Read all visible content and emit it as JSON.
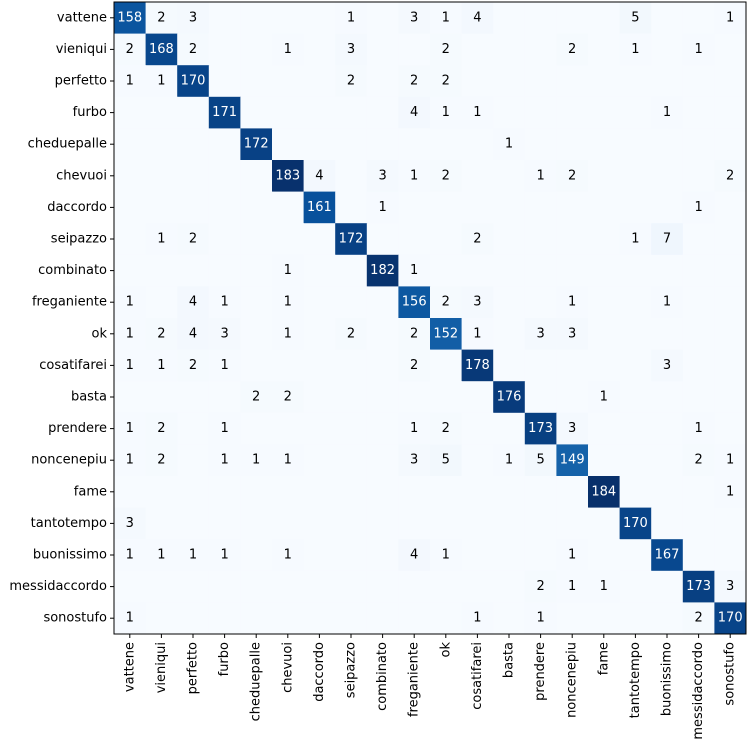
{
  "chart_data": {
    "type": "heatmap",
    "title": "",
    "xlabel": "",
    "ylabel": "",
    "colormap": "Blues",
    "colors": {
      "low": "#f7fbff",
      "high": "#08306b",
      "text_light": "#ffffff",
      "text_dark": "#000000"
    },
    "grid": false,
    "categories": [
      "vattene",
      "vieniqui",
      "perfetto",
      "furbo",
      "cheduepalle",
      "chevuoi",
      "daccordo",
      "seipazzo",
      "combinato",
      "freganiente",
      "ok",
      "cosatifarei",
      "basta",
      "prendere",
      "noncenepiu",
      "fame",
      "tantotempo",
      "buonissimo",
      "messidaccordo",
      "sonostufo"
    ],
    "x_tick_labels": [
      "vattene",
      "vieniqui",
      "perfetto",
      "furbo",
      "cheduepalle",
      "chevuoi",
      "daccordo",
      "seipazzo",
      "combinato",
      "freganiente",
      "ok",
      "cosatifarei",
      "basta",
      "prendere",
      "noncenepiu",
      "fame",
      "tantotempo",
      "buonissimo",
      "messidaccordo",
      "sonostufo"
    ],
    "y_tick_labels": [
      "vattene",
      "vieniqui",
      "perfetto",
      "furbo",
      "cheduepalle",
      "chevuoi",
      "daccordo",
      "seipazzo",
      "combinato",
      "freganiente",
      "ok",
      "cosatifarei",
      "basta",
      "prendere",
      "noncenepiu",
      "fame",
      "tantotempo",
      "buonissimo",
      "messidaccordo",
      "sonostufo"
    ],
    "matrix": [
      [
        158,
        2,
        3,
        0,
        0,
        0,
        0,
        1,
        0,
        3,
        1,
        4,
        0,
        0,
        0,
        0,
        5,
        0,
        0,
        1
      ],
      [
        2,
        168,
        2,
        0,
        0,
        1,
        0,
        3,
        0,
        0,
        2,
        0,
        0,
        0,
        2,
        0,
        1,
        0,
        1,
        0
      ],
      [
        1,
        1,
        170,
        0,
        0,
        0,
        0,
        2,
        0,
        2,
        2,
        0,
        0,
        0,
        0,
        0,
        0,
        0,
        0,
        0
      ],
      [
        0,
        0,
        0,
        171,
        0,
        0,
        0,
        0,
        0,
        4,
        1,
        1,
        0,
        0,
        0,
        0,
        0,
        1,
        0,
        0
      ],
      [
        0,
        0,
        0,
        0,
        172,
        0,
        0,
        0,
        0,
        0,
        0,
        0,
        1,
        0,
        0,
        0,
        0,
        0,
        0,
        0
      ],
      [
        0,
        0,
        0,
        0,
        0,
        183,
        4,
        0,
        3,
        1,
        2,
        0,
        0,
        1,
        2,
        0,
        0,
        0,
        0,
        2
      ],
      [
        0,
        0,
        0,
        0,
        0,
        0,
        161,
        0,
        1,
        0,
        0,
        0,
        0,
        0,
        0,
        0,
        0,
        0,
        1,
        0
      ],
      [
        0,
        1,
        2,
        0,
        0,
        0,
        0,
        172,
        0,
        0,
        0,
        2,
        0,
        0,
        0,
        0,
        1,
        7,
        0,
        0
      ],
      [
        0,
        0,
        0,
        0,
        0,
        1,
        0,
        0,
        182,
        1,
        0,
        0,
        0,
        0,
        0,
        0,
        0,
        0,
        0,
        0
      ],
      [
        1,
        0,
        4,
        1,
        0,
        1,
        0,
        0,
        0,
        156,
        2,
        3,
        0,
        0,
        1,
        0,
        0,
        1,
        0,
        0
      ],
      [
        1,
        2,
        4,
        3,
        0,
        1,
        0,
        2,
        0,
        2,
        152,
        1,
        0,
        3,
        3,
        0,
        0,
        0,
        0,
        0
      ],
      [
        1,
        1,
        2,
        1,
        0,
        0,
        0,
        0,
        0,
        2,
        0,
        178,
        0,
        0,
        0,
        0,
        0,
        3,
        0,
        0
      ],
      [
        0,
        0,
        0,
        0,
        2,
        2,
        0,
        0,
        0,
        0,
        0,
        0,
        176,
        0,
        0,
        1,
        0,
        0,
        0,
        0
      ],
      [
        1,
        2,
        0,
        1,
        0,
        0,
        0,
        0,
        0,
        1,
        2,
        0,
        0,
        173,
        3,
        0,
        0,
        0,
        1,
        0
      ],
      [
        1,
        2,
        0,
        1,
        1,
        1,
        0,
        0,
        0,
        3,
        5,
        0,
        1,
        5,
        149,
        0,
        0,
        0,
        2,
        1
      ],
      [
        0,
        0,
        0,
        0,
        0,
        0,
        0,
        0,
        0,
        0,
        0,
        0,
        0,
        0,
        0,
        184,
        0,
        0,
        0,
        1
      ],
      [
        3,
        0,
        0,
        0,
        0,
        0,
        0,
        0,
        0,
        0,
        0,
        0,
        0,
        0,
        0,
        0,
        170,
        0,
        0,
        0
      ],
      [
        1,
        1,
        1,
        1,
        0,
        1,
        0,
        0,
        0,
        4,
        1,
        0,
        0,
        0,
        1,
        0,
        0,
        167,
        0,
        0
      ],
      [
        0,
        0,
        0,
        0,
        0,
        0,
        0,
        0,
        0,
        0,
        0,
        0,
        0,
        2,
        1,
        1,
        0,
        0,
        173,
        3
      ],
      [
        1,
        0,
        0,
        0,
        0,
        0,
        0,
        0,
        0,
        0,
        0,
        1,
        0,
        1,
        0,
        0,
        0,
        0,
        2,
        170
      ]
    ],
    "value_range": [
      0,
      184
    ],
    "hide_zero_labels": true
  }
}
